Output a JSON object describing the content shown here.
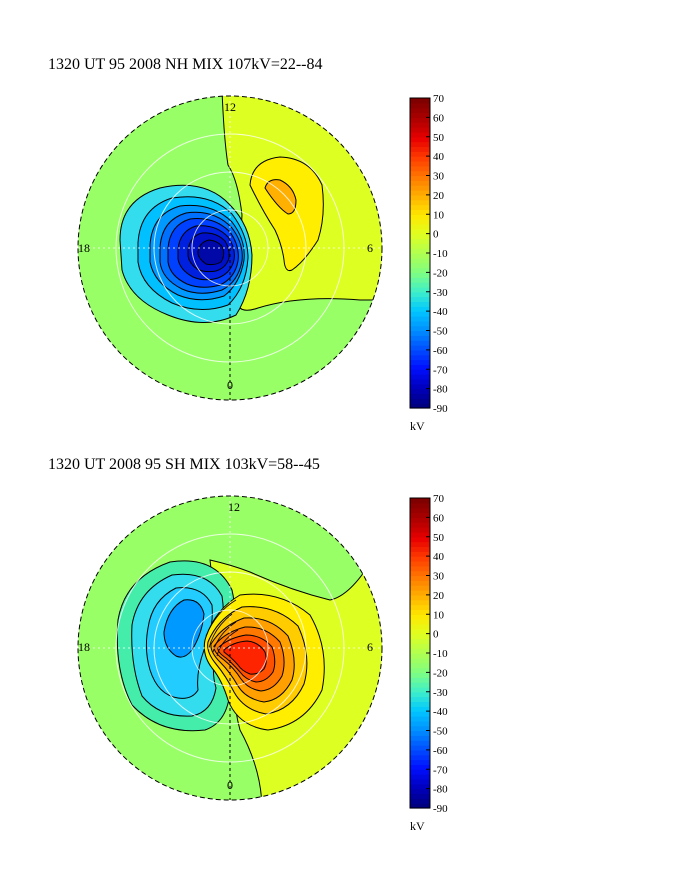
{
  "chart_data": [
    {
      "type": "heatmap",
      "projection": "polar",
      "title": "1320 UT 95 2008 NH MIX 107kV=22--84",
      "clock_labels": {
        "top": "12",
        "left": "18",
        "right": "6",
        "bottom": "0"
      },
      "colorbar": {
        "ticks": [
          "70",
          "60",
          "50",
          "40",
          "30",
          "20",
          "10",
          "0",
          "-10",
          "-20",
          "-30",
          "-40",
          "-50",
          "-60",
          "-70",
          "-80",
          "-90"
        ],
        "range": [
          -90,
          70
        ],
        "unit": "kV",
        "colors": [
          "#000080",
          "#0000bf",
          "#0010ff",
          "#0050ff",
          "#0090ff",
          "#00c8ff",
          "#40f0c8",
          "#80ff80",
          "#b0ff50",
          "#e0ff20",
          "#ffe800",
          "#ffb000",
          "#ff7800",
          "#ff3c00",
          "#e80000",
          "#b00000",
          "#800000"
        ]
      },
      "potential": {
        "max_kV": 22,
        "min_kV": -84,
        "total_kV": 107
      },
      "cells": [
        {
          "mlt": 15.5,
          "colat_deg": 12,
          "kV": -84
        },
        {
          "mlt": 8.5,
          "colat_deg": 16,
          "kV": 22
        },
        {
          "mlt": 12,
          "colat_deg": 35,
          "kV": 0
        }
      ]
    },
    {
      "type": "heatmap",
      "projection": "polar",
      "title": "1320 UT 2008 95 SH MIX 103kV=58--45",
      "clock_labels": {
        "top": "12",
        "left": "18",
        "right": "6",
        "bottom": "0"
      },
      "colorbar": {
        "ticks": [
          "70",
          "60",
          "50",
          "40",
          "30",
          "20",
          "10",
          "0",
          "-10",
          "-20",
          "-30",
          "-40",
          "-50",
          "-60",
          "-70",
          "-80",
          "-90"
        ],
        "range": [
          -90,
          70
        ],
        "unit": "kV",
        "colors": [
          "#000080",
          "#0000bf",
          "#0010ff",
          "#0050ff",
          "#0090ff",
          "#00c8ff",
          "#40f0c8",
          "#80ff80",
          "#b0ff50",
          "#e0ff20",
          "#ffe800",
          "#ffb000",
          "#ff7800",
          "#ff3c00",
          "#e80000",
          "#b00000",
          "#800000"
        ]
      },
      "potential": {
        "max_kV": 58,
        "min_kV": -45,
        "total_kV": 103
      },
      "cells": [
        {
          "mlt": 8.0,
          "colat_deg": 6,
          "kV": 58
        },
        {
          "mlt": 16.0,
          "colat_deg": 16,
          "kV": -45
        },
        {
          "mlt": 12,
          "colat_deg": 35,
          "kV": 0
        }
      ]
    }
  ]
}
